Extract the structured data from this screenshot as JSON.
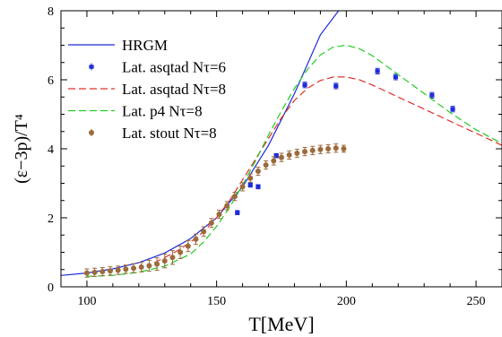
{
  "chart_data": {
    "type": "line",
    "xlabel": "T[MeV]",
    "ylabel": "(ε−3p)/T⁴",
    "xlim": [
      90,
      260
    ],
    "ylim": [
      0,
      8
    ],
    "grid": false,
    "legend_position": "top-left",
    "x_ticks": [
      "100",
      "150",
      "200",
      "250"
    ],
    "y_ticks": [
      "0",
      "2",
      "4",
      "6",
      "8"
    ],
    "series": [
      {
        "name": "HRGM",
        "kind": "line",
        "color": "#1f2bd6",
        "dash": "solid",
        "points": [
          [
            90,
            0.33
          ],
          [
            100,
            0.4
          ],
          [
            110,
            0.52
          ],
          [
            120,
            0.7
          ],
          [
            130,
            0.98
          ],
          [
            140,
            1.4
          ],
          [
            150,
            2.0
          ],
          [
            160,
            2.9
          ],
          [
            170,
            4.1
          ],
          [
            180,
            5.6
          ],
          [
            190,
            7.3
          ],
          [
            197,
            8.0
          ]
        ]
      },
      {
        "name": "Lat. asqtad Nτ=6",
        "kind": "points",
        "color": "#1f2bd6",
        "marker": "square",
        "points": [
          [
            158,
            2.15
          ],
          [
            163,
            2.95
          ],
          [
            166,
            2.9
          ],
          [
            173,
            3.8
          ],
          [
            184,
            5.85
          ],
          [
            196,
            5.82
          ],
          [
            212,
            6.25
          ],
          [
            219,
            6.08
          ],
          [
            233,
            5.55
          ],
          [
            241,
            5.15
          ]
        ],
        "errors": [
          0.06,
          0.06,
          0.06,
          0.06,
          0.08,
          0.08,
          0.08,
          0.08,
          0.08,
          0.08
        ]
      },
      {
        "name": "Lat. asqtad Nτ=8",
        "kind": "line",
        "color": "#e0302a",
        "dash": "dashed",
        "points": [
          [
            126,
            0.7
          ],
          [
            130,
            0.85
          ],
          [
            135,
            1.05
          ],
          [
            140,
            1.3
          ],
          [
            145,
            1.6
          ],
          [
            150,
            2.0
          ],
          [
            155,
            2.5
          ],
          [
            160,
            3.1
          ],
          [
            165,
            3.7
          ],
          [
            170,
            4.3
          ],
          [
            175,
            4.9
          ],
          [
            180,
            5.4
          ],
          [
            185,
            5.75
          ],
          [
            190,
            5.98
          ],
          [
            195,
            6.08
          ],
          [
            200,
            6.08
          ],
          [
            205,
            6.0
          ],
          [
            210,
            5.85
          ],
          [
            220,
            5.5
          ],
          [
            230,
            5.15
          ],
          [
            240,
            4.8
          ],
          [
            250,
            4.45
          ],
          [
            260,
            4.1
          ]
        ]
      },
      {
        "name": "Lat. p4 Nτ=8",
        "kind": "line",
        "color": "#22cc22",
        "dash": "dashed",
        "points": [
          [
            100,
            0.3
          ],
          [
            110,
            0.33
          ],
          [
            120,
            0.42
          ],
          [
            130,
            0.6
          ],
          [
            140,
            0.95
          ],
          [
            145,
            1.3
          ],
          [
            150,
            1.75
          ],
          [
            155,
            2.3
          ],
          [
            160,
            2.95
          ],
          [
            165,
            3.65
          ],
          [
            170,
            4.4
          ],
          [
            175,
            5.1
          ],
          [
            180,
            5.75
          ],
          [
            185,
            6.3
          ],
          [
            190,
            6.72
          ],
          [
            195,
            6.95
          ],
          [
            200,
            7.0
          ],
          [
            205,
            6.9
          ],
          [
            210,
            6.7
          ],
          [
            220,
            6.15
          ],
          [
            230,
            5.6
          ],
          [
            240,
            5.05
          ],
          [
            250,
            4.55
          ],
          [
            260,
            4.15
          ]
        ]
      },
      {
        "name": "Lat. stout Nτ=8",
        "kind": "points",
        "color": "#9c6a3a",
        "marker": "circle",
        "points": [
          [
            100,
            0.4
          ],
          [
            103,
            0.42
          ],
          [
            106,
            0.44
          ],
          [
            109,
            0.46
          ],
          [
            112,
            0.48
          ],
          [
            115,
            0.51
          ],
          [
            118,
            0.54
          ],
          [
            121,
            0.57
          ],
          [
            124,
            0.61
          ],
          [
            127,
            0.66
          ],
          [
            130,
            0.75
          ],
          [
            133,
            0.85
          ],
          [
            136,
            1.0
          ],
          [
            139,
            1.18
          ],
          [
            142,
            1.38
          ],
          [
            145,
            1.6
          ],
          [
            148,
            1.85
          ],
          [
            151,
            2.1
          ],
          [
            154,
            2.35
          ],
          [
            157,
            2.62
          ],
          [
            160,
            2.9
          ],
          [
            163,
            3.15
          ],
          [
            166,
            3.35
          ],
          [
            169,
            3.53
          ],
          [
            172,
            3.65
          ],
          [
            175,
            3.75
          ],
          [
            178,
            3.82
          ],
          [
            181,
            3.87
          ],
          [
            184,
            3.92
          ],
          [
            187,
            3.95
          ],
          [
            190,
            3.98
          ],
          [
            193,
            4.0
          ],
          [
            196,
            4.02
          ],
          [
            199,
            4.0
          ]
        ],
        "errors": [
          0.12,
          0.12,
          0.12,
          0.12,
          0.12,
          0.12,
          0.13,
          0.14,
          0.16,
          0.18,
          0.2,
          0.2,
          0.18,
          0.16,
          0.15,
          0.14,
          0.13,
          0.12,
          0.12,
          0.12,
          0.12,
          0.12,
          0.12,
          0.12,
          0.12,
          0.12,
          0.12,
          0.12,
          0.12,
          0.12,
          0.12,
          0.12,
          0.12,
          0.1
        ]
      }
    ]
  }
}
